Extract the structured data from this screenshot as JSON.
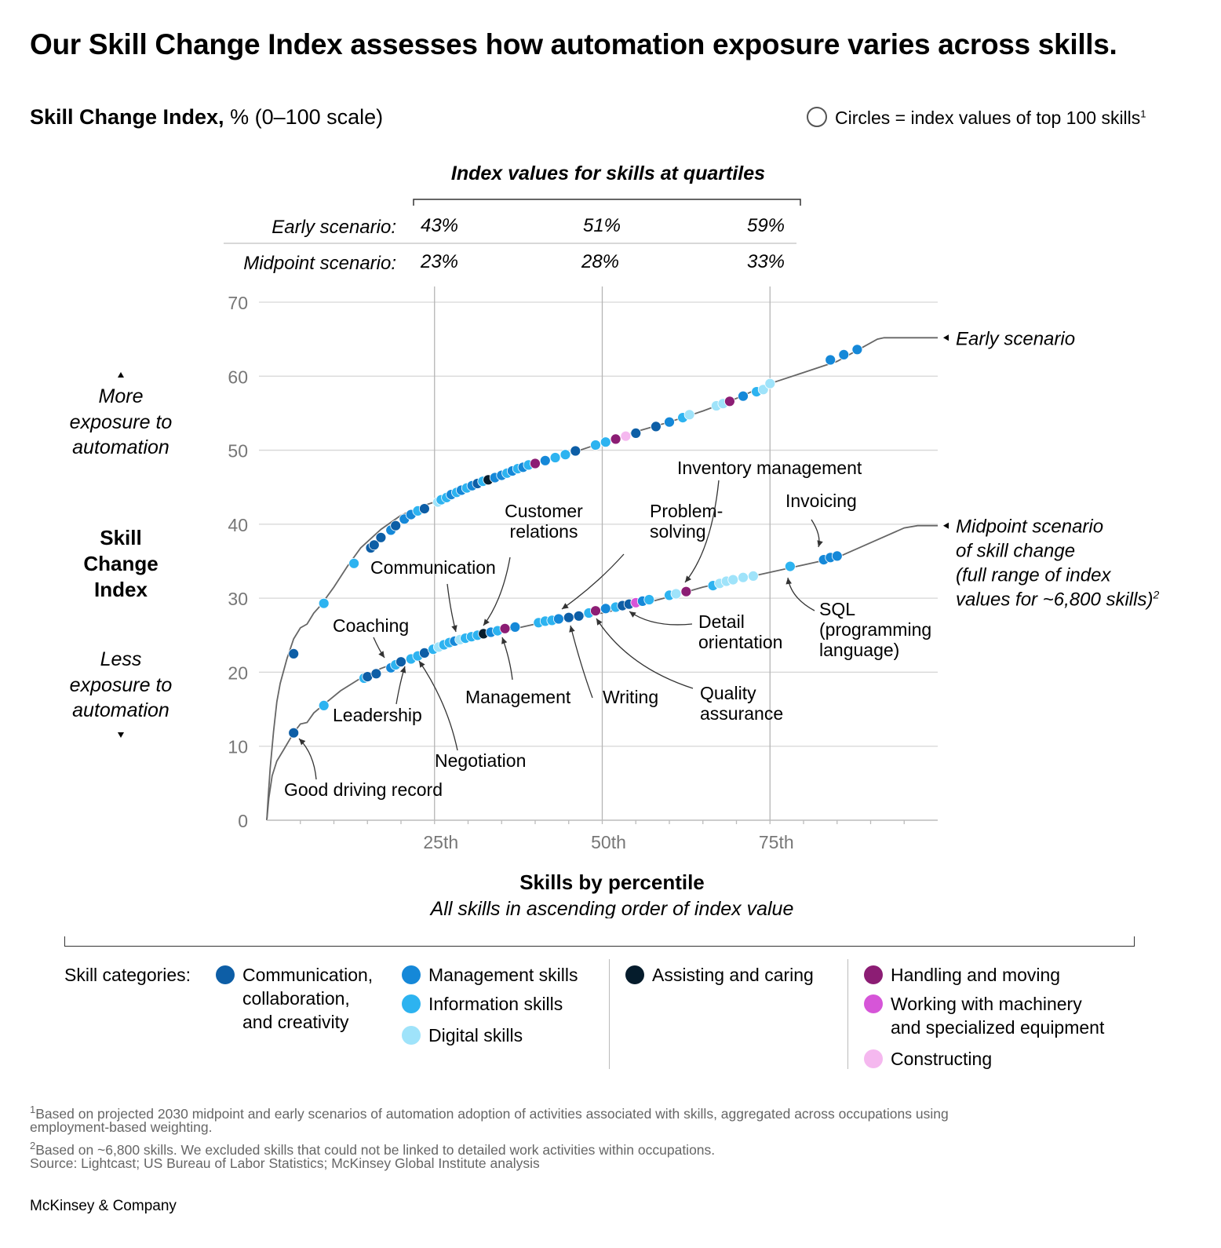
{
  "header": {
    "title": "Our Skill Change Index assesses how automation exposure varies across skills.",
    "subtitle_bold": "Skill Change Index,",
    "subtitle_rest": " % (0–100 scale)",
    "circle_note": "Circles = index values of top 100 skills",
    "circle_note_sup": "1"
  },
  "quartile_table": {
    "title": "Index values for skills at quartiles",
    "rows": [
      {
        "label": "Early scenario:",
        "values": [
          "43%",
          "51%",
          "59%"
        ]
      },
      {
        "label": "Midpoint scenario:",
        "values": [
          "23%",
          "28%",
          "33%"
        ]
      }
    ]
  },
  "y_axis_side": {
    "more_lines": [
      "More",
      "exposure to",
      "automation"
    ],
    "index_lines": [
      "Skill",
      "Change",
      "Index"
    ],
    "less_lines": [
      "Less",
      "exposure to",
      "automation"
    ]
  },
  "chart_data": {
    "type": "scatter",
    "title": "Skill Change Index",
    "xlabel": "Skills by percentile",
    "xsublabel": "All skills in ascending order of index value",
    "ylabel": "Skill Change Index",
    "ylim": [
      0,
      70
    ],
    "xlim": [
      0,
      100
    ],
    "yticks": [
      0,
      10,
      20,
      30,
      40,
      50,
      60,
      70
    ],
    "xticks": [
      {
        "x": 25,
        "label": "25th"
      },
      {
        "x": 50,
        "label": "50th"
      },
      {
        "x": 75,
        "label": "75th"
      }
    ],
    "series": [
      {
        "name": "Early scenario",
        "curve": [
          [
            0,
            0
          ],
          [
            0.2,
            3
          ],
          [
            0.5,
            7
          ],
          [
            1,
            12
          ],
          [
            1.5,
            16
          ],
          [
            2,
            18.5
          ],
          [
            3,
            21.8
          ],
          [
            4,
            24.5
          ],
          [
            5,
            26
          ],
          [
            6,
            26.5
          ],
          [
            7,
            28
          ],
          [
            8,
            29
          ],
          [
            10,
            31.5
          ],
          [
            12,
            34.3
          ],
          [
            14,
            36.8
          ],
          [
            17,
            39.3
          ],
          [
            20,
            41.2
          ],
          [
            23,
            42.4
          ],
          [
            25,
            43
          ],
          [
            30,
            45
          ],
          [
            35,
            46.8
          ],
          [
            40,
            48.2
          ],
          [
            45,
            49.5
          ],
          [
            50,
            51
          ],
          [
            55,
            52.5
          ],
          [
            60,
            53.8
          ],
          [
            65,
            55.3
          ],
          [
            70,
            57
          ],
          [
            75,
            59
          ],
          [
            80,
            60.5
          ],
          [
            85,
            62
          ],
          [
            88,
            63.5
          ],
          [
            91,
            65
          ],
          [
            92,
            65.2
          ],
          [
            100,
            65.2
          ]
        ],
        "points": [
          [
            4,
            22.5,
            "comm"
          ],
          [
            8.5,
            29.3,
            "info"
          ],
          [
            13,
            34.7,
            "info"
          ],
          [
            15.5,
            36.8,
            "comm"
          ],
          [
            16,
            37.2,
            "comm"
          ],
          [
            17,
            38.2,
            "comm"
          ],
          [
            18.5,
            39.2,
            "mgmt"
          ],
          [
            19.2,
            39.8,
            "comm"
          ],
          [
            20.5,
            40.7,
            "mgmt"
          ],
          [
            21.5,
            41.3,
            "mgmt"
          ],
          [
            22.5,
            41.8,
            "info"
          ],
          [
            23.5,
            42.1,
            "comm"
          ],
          [
            25.5,
            43,
            "digital"
          ],
          [
            26,
            43.3,
            "info"
          ],
          [
            26.8,
            43.6,
            "info"
          ],
          [
            27.5,
            44,
            "mgmt"
          ],
          [
            28.3,
            44.3,
            "info"
          ],
          [
            29,
            44.6,
            "mgmt"
          ],
          [
            29.8,
            44.9,
            "info"
          ],
          [
            30.6,
            45.2,
            "mgmt"
          ],
          [
            31.4,
            45.5,
            "comm"
          ],
          [
            32.2,
            45.8,
            "info"
          ],
          [
            33,
            46,
            "assist"
          ],
          [
            34,
            46.3,
            "mgmt"
          ],
          [
            35,
            46.6,
            "mgmt"
          ],
          [
            35.8,
            46.9,
            "info"
          ],
          [
            36.6,
            47.2,
            "mgmt"
          ],
          [
            37.4,
            47.5,
            "info"
          ],
          [
            38.2,
            47.7,
            "mgmt"
          ],
          [
            39,
            48,
            "info"
          ],
          [
            40,
            48.2,
            "handling"
          ],
          [
            41.5,
            48.6,
            "mgmt"
          ],
          [
            43,
            49,
            "info"
          ],
          [
            44.5,
            49.4,
            "info"
          ],
          [
            46,
            49.9,
            "comm"
          ],
          [
            49,
            50.7,
            "info"
          ],
          [
            50.5,
            51.1,
            "info"
          ],
          [
            52,
            51.5,
            "handling"
          ],
          [
            53.5,
            51.9,
            "constructing"
          ],
          [
            55,
            52.3,
            "comm"
          ],
          [
            58,
            53.2,
            "comm"
          ],
          [
            60,
            53.8,
            "mgmt"
          ],
          [
            62,
            54.4,
            "info"
          ],
          [
            63,
            54.8,
            "digital"
          ],
          [
            67,
            56,
            "digital"
          ],
          [
            68,
            56.3,
            "digital"
          ],
          [
            69,
            56.6,
            "handling"
          ],
          [
            71,
            57.3,
            "mgmt"
          ],
          [
            73,
            57.9,
            "info"
          ],
          [
            74,
            58.2,
            "digital"
          ],
          [
            75,
            59,
            "digital"
          ],
          [
            84,
            62.2,
            "mgmt"
          ],
          [
            86,
            62.9,
            "mgmt"
          ],
          [
            88,
            63.6,
            "mgmt"
          ]
        ]
      },
      {
        "name": "Midpoint scenario",
        "curve": [
          [
            0,
            0
          ],
          [
            0.3,
            3
          ],
          [
            0.8,
            6
          ],
          [
            1.5,
            8
          ],
          [
            2.5,
            9.5
          ],
          [
            4,
            11.8
          ],
          [
            5,
            13
          ],
          [
            6,
            13.2
          ],
          [
            7,
            14.5
          ],
          [
            9,
            16
          ],
          [
            11,
            17.5
          ],
          [
            14,
            19.2
          ],
          [
            17,
            20.5
          ],
          [
            20,
            21.5
          ],
          [
            25,
            23
          ],
          [
            30,
            24.3
          ],
          [
            35,
            25.5
          ],
          [
            40,
            26.5
          ],
          [
            45,
            27.3
          ],
          [
            50,
            28
          ],
          [
            55,
            29
          ],
          [
            60,
            30.2
          ],
          [
            65,
            31.5
          ],
          [
            70,
            32.5
          ],
          [
            75,
            33.5
          ],
          [
            80,
            34.5
          ],
          [
            85,
            35.5
          ],
          [
            90,
            37.5
          ],
          [
            95,
            39.5
          ],
          [
            97,
            39.8
          ],
          [
            100,
            39.8
          ]
        ],
        "points": [
          [
            4,
            11.8,
            "comm"
          ],
          [
            8.5,
            15.5,
            "info"
          ],
          [
            14.5,
            19.2,
            "info"
          ],
          [
            15,
            19.4,
            "comm"
          ],
          [
            16.3,
            19.8,
            "comm"
          ],
          [
            18.5,
            20.6,
            "mgmt"
          ],
          [
            19.2,
            21,
            "info"
          ],
          [
            20,
            21.4,
            "comm"
          ],
          [
            21.5,
            21.8,
            "info"
          ],
          [
            22.5,
            22.2,
            "info"
          ],
          [
            23.5,
            22.6,
            "comm"
          ],
          [
            24.8,
            23.1,
            "info"
          ],
          [
            25.6,
            23.4,
            "digital"
          ],
          [
            26.4,
            23.7,
            "info"
          ],
          [
            27.2,
            24,
            "info"
          ],
          [
            28,
            24.2,
            "mgmt"
          ],
          [
            28.8,
            24.4,
            "digital"
          ],
          [
            29.6,
            24.6,
            "info"
          ],
          [
            30.5,
            24.8,
            "info"
          ],
          [
            31.4,
            25,
            "info"
          ],
          [
            32.3,
            25.2,
            "assist"
          ],
          [
            33.4,
            25.4,
            "mgmt"
          ],
          [
            34.4,
            25.6,
            "info"
          ],
          [
            35.5,
            25.9,
            "handling"
          ],
          [
            37,
            26.1,
            "mgmt"
          ],
          [
            40.5,
            26.7,
            "info"
          ],
          [
            41.5,
            26.9,
            "info"
          ],
          [
            42.5,
            27,
            "info"
          ],
          [
            43.5,
            27.2,
            "mgmt"
          ],
          [
            45,
            27.4,
            "comm"
          ],
          [
            46.5,
            27.6,
            "comm"
          ],
          [
            48,
            28,
            "info"
          ],
          [
            49,
            28.3,
            "handling"
          ],
          [
            50.5,
            28.6,
            "mgmt"
          ],
          [
            52,
            28.8,
            "info"
          ],
          [
            53,
            29,
            "comm"
          ],
          [
            54,
            29.2,
            "comm"
          ],
          [
            55,
            29.4,
            "machinery"
          ],
          [
            56,
            29.6,
            "mgmt"
          ],
          [
            57,
            29.8,
            "info"
          ],
          [
            60,
            30.4,
            "info"
          ],
          [
            61,
            30.6,
            "digital"
          ],
          [
            62.5,
            30.9,
            "handling"
          ],
          [
            66.5,
            31.7,
            "info"
          ],
          [
            67.5,
            32,
            "digital"
          ],
          [
            68.5,
            32.3,
            "digital"
          ],
          [
            69.5,
            32.5,
            "digital"
          ],
          [
            71,
            32.8,
            "digital"
          ],
          [
            72.5,
            33,
            "digital"
          ],
          [
            78,
            34.3,
            "info"
          ],
          [
            83,
            35.2,
            "mgmt"
          ],
          [
            84,
            35.5,
            "mgmt"
          ],
          [
            85,
            35.7,
            "mgmt"
          ]
        ]
      }
    ],
    "category_colors": {
      "comm": "#0d5ea6",
      "mgmt": "#1588d8",
      "info": "#2db3f0",
      "digital": "#9fe3fa",
      "assist": "#051c2c",
      "handling": "#8c1d74",
      "machinery": "#d655d8",
      "constructing": "#f5b8ef"
    },
    "line_color": "#666666",
    "series_labels": {
      "early": "Early scenario",
      "midpoint": [
        "Midpoint scenario",
        "of skill change",
        "(full range of index",
        "values for ~6,800 skills)"
      ],
      "midpoint_sup": "2"
    },
    "annotations": [
      {
        "lines": [
          "Communication"
        ],
        "tx": 28.2,
        "ty": 24.3
      },
      {
        "lines": [
          "Customer",
          "relations"
        ],
        "tx": 32.5,
        "ty": 25.2
      },
      {
        "lines": [
          "Problem-",
          "solving"
        ],
        "tx": 45.5,
        "ty": 28
      },
      {
        "lines": [
          "Inventory management"
        ],
        "tx": 62.5,
        "ty": 30.9
      },
      {
        "lines": [
          "Invoicing"
        ],
        "tx": 84.5,
        "ty": 36.5
      },
      {
        "lines": [
          "Coaching"
        ],
        "tx": 18.5,
        "ty": 20.9
      },
      {
        "lines": [
          "Detail",
          "orientation"
        ],
        "tx": 55,
        "ty": 28.8
      },
      {
        "lines": [
          "SQL",
          "(programming",
          "language)"
        ],
        "tx": 79,
        "ty": 33.3
      },
      {
        "lines": [
          "Management"
        ],
        "tx": 35.5,
        "ty": 25
      },
      {
        "lines": [
          "Writing"
        ],
        "tx": 46,
        "ty": 26.7
      },
      {
        "lines": [
          "Quality",
          "assurance"
        ],
        "tx": 50,
        "ty": 26.8
      },
      {
        "lines": [
          "Leadership"
        ],
        "tx": 21,
        "ty": 22.4
      },
      {
        "lines": [
          "Negotiation"
        ],
        "tx": 23.5,
        "ty": 22.2
      },
      {
        "lines": [
          "Good driving record"
        ],
        "tx": 5,
        "ty": 10.5
      }
    ]
  },
  "legend": {
    "title": "Skill categories:",
    "items": [
      {
        "key": "comm",
        "lines": [
          "Communication,",
          "collaboration,",
          "and creativity"
        ]
      },
      {
        "key": "mgmt",
        "lines": [
          "Management skills"
        ]
      },
      {
        "key": "info",
        "lines": [
          "Information skills"
        ]
      },
      {
        "key": "digital",
        "lines": [
          "Digital skills"
        ]
      },
      {
        "key": "assist",
        "lines": [
          "Assisting and caring"
        ]
      },
      {
        "key": "handling",
        "lines": [
          "Handling and moving"
        ]
      },
      {
        "key": "machinery",
        "lines": [
          "Working with machinery",
          "and specialized equipment"
        ]
      },
      {
        "key": "constructing",
        "lines": [
          "Constructing"
        ]
      }
    ]
  },
  "footnotes": {
    "fn1_sup": "1",
    "fn1": "Based on projected 2030 midpoint and early scenarios of automation adoption of activities associated with skills, aggregated across occupations using",
    "fn1_cont": "employment-based weighting.",
    "fn2_sup": "2",
    "fn2": "Based on ~6,800 skills. We excluded skills that could not be linked to detailed work activities within occupations.",
    "source": "Source: Lightcast; US Bureau of Labor Statistics; McKinsey Global Institute analysis"
  },
  "brand": "McKinsey & Company"
}
